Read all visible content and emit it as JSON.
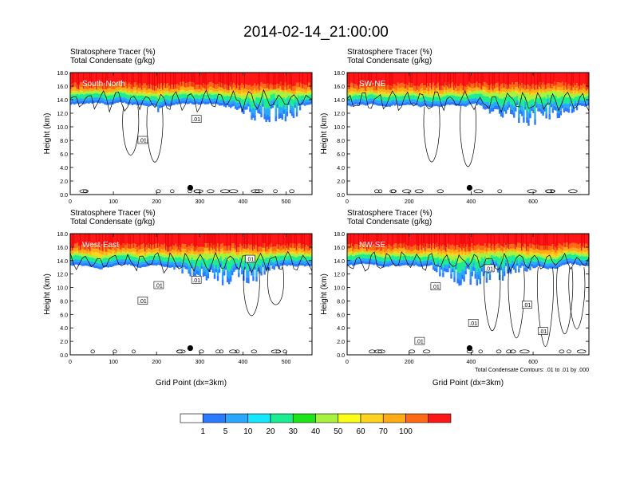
{
  "title": "2014-02-14_21:00:00",
  "colors": {
    "ramp": [
      "#ffffff",
      "#2a7bff",
      "#2aa8ff",
      "#16e6ff",
      "#1aee90",
      "#1ee51a",
      "#a7f23c",
      "#fbff18",
      "#ffd31e",
      "#ffab14",
      "#ff6a14",
      "#ff1616"
    ]
  },
  "chart_data": [
    {
      "type": "heatmap",
      "panel_label": "South-North",
      "subtitle_lines": [
        "Stratosphere Tracer   (%)",
        "Total Condensate   (g/kg)"
      ],
      "ylabel": "Height (km)",
      "xlabel": "",
      "xlim": [
        0,
        560
      ],
      "ylim": [
        0,
        18
      ],
      "xticks": [
        "0",
        "100",
        "200",
        "300",
        "400",
        "500"
      ],
      "xtick_values": [
        0,
        100,
        200,
        300,
        400,
        500
      ],
      "yticks": [
        "0.0",
        "2.0",
        "4.0",
        "6.0",
        "8.0",
        "10.0",
        "12.0",
        "14.0",
        "16.0",
        "18.0"
      ],
      "contour_labels": [
        ".01",
        ".01"
      ],
      "marker_x": 278,
      "marker_y": 1.0
    },
    {
      "type": "heatmap",
      "panel_label": "SW-NE",
      "subtitle_lines": [
        "Stratosphere Tracer   (%)",
        "Total Condensate   (g/kg)"
      ],
      "ylabel": "Height (km)",
      "xlabel": "",
      "xlim": [
        0,
        780
      ],
      "ylim": [
        0,
        18
      ],
      "xticks": [
        "0",
        "200",
        "400",
        "600"
      ],
      "xtick_values": [
        0,
        200,
        400,
        600
      ],
      "yticks": [
        "0.0",
        "2.0",
        "4.0",
        "6.0",
        "8.0",
        "10.0",
        "12.0",
        "14.0",
        "16.0",
        "18.0"
      ],
      "contour_labels": [],
      "marker_x": 395,
      "marker_y": 1.0
    },
    {
      "type": "heatmap",
      "panel_label": "West-East",
      "subtitle_lines": [
        "Stratosphere Tracer   (%)",
        "Total Condensate   (g/kg)"
      ],
      "ylabel": "Height (km)",
      "xlabel": "Grid Point (dx=3km)",
      "xlim": [
        0,
        560
      ],
      "ylim": [
        0,
        18
      ],
      "xticks": [
        "0",
        "100",
        "200",
        "300",
        "400",
        "500"
      ],
      "xtick_values": [
        0,
        100,
        200,
        300,
        400,
        500
      ],
      "yticks": [
        "0.0",
        "2.0",
        "4.0",
        "6.0",
        "8.0",
        "10.0",
        "12.0",
        "14.0",
        "16.0",
        "18.0"
      ],
      "contour_labels": [
        ".01",
        ".01",
        ".01",
        ".01"
      ],
      "marker_x": 278,
      "marker_y": 1.0
    },
    {
      "type": "heatmap",
      "panel_label": "NW-SE",
      "subtitle_lines": [
        "Stratosphere Tracer   (%)",
        "Total Condensate   (g/kg)"
      ],
      "ylabel": "Height (km)",
      "xlabel": "Grid Point (dx=3km)",
      "xlim": [
        0,
        780
      ],
      "ylim": [
        0,
        18
      ],
      "xticks": [
        "0",
        "200",
        "400",
        "600"
      ],
      "xtick_values": [
        0,
        200,
        400,
        600
      ],
      "yticks": [
        "0.0",
        "2.0",
        "4.0",
        "6.0",
        "8.0",
        "10.0",
        "12.0",
        "14.0",
        "16.0",
        "18.0"
      ],
      "contour_labels": [
        ".01",
        ".01",
        ".01",
        ".01",
        ".01",
        ".01"
      ],
      "footnote": "Total Condensate Contours: .01 to .01 by .000",
      "marker_x": 395,
      "marker_y": 1.0
    }
  ],
  "colorbar": {
    "labels": [
      "1",
      "5",
      "10",
      "20",
      "30",
      "40",
      "50",
      "60",
      "70",
      "100"
    ]
  }
}
